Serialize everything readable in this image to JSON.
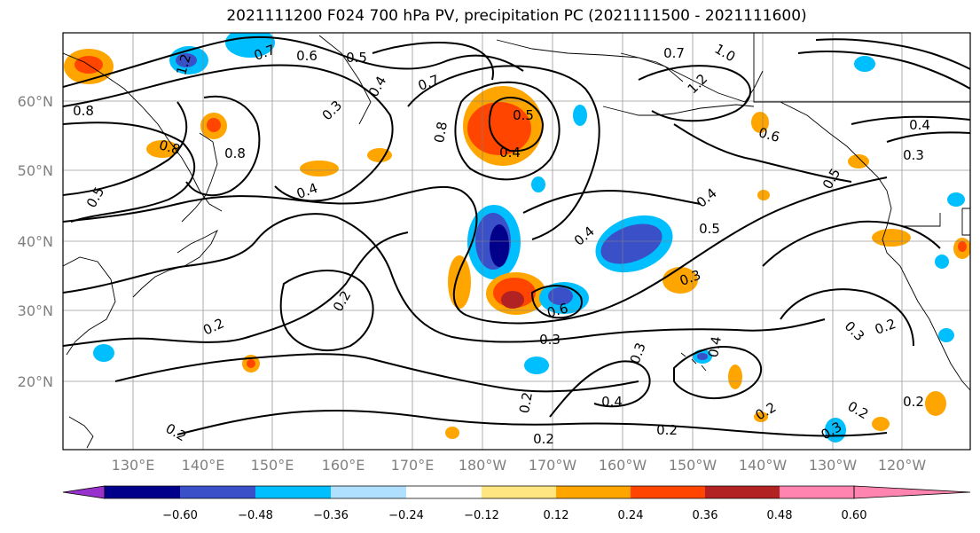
{
  "title": "2021111200 F024 700 hPa PV, precipitation PC (2021111500 - 2021111600)",
  "lat_labels": [
    "60°N",
    "50°N",
    "40°N",
    "30°N",
    "20°N"
  ],
  "lon_labels": [
    "130°E",
    "140°E",
    "150°E",
    "160°E",
    "170°E",
    "180°W",
    "170°W",
    "160°W",
    "150°W",
    "140°W",
    "130°W",
    "120°W"
  ],
  "contour_labels": [
    "1.2",
    "0.7",
    "0.6",
    "0.5",
    "0.7",
    "0.7",
    "1.0",
    "0.8",
    "0.8",
    "0.3",
    "0.4",
    "0.5",
    "0.4",
    "0.8",
    "0.6",
    "0.4",
    "0.8",
    "0.3",
    "0.4",
    "0.5",
    "0.4",
    "0.4",
    "0.5",
    "0.5",
    "0.3",
    "0.6",
    "0.2",
    "0.2",
    "0.3",
    "0.3",
    "0.4",
    "0.2",
    "0.2",
    "0.4",
    "0.2",
    "0.2",
    "0.3",
    "0.2",
    "0.2",
    "0.2",
    "0.3",
    "0.2",
    "1.2"
  ],
  "colorbar": {
    "tick_labels": [
      "−0.60",
      "−0.48",
      "−0.36",
      "−0.24",
      "−0.12",
      "0.12",
      "0.24",
      "0.36",
      "0.48",
      "0.60"
    ],
    "colors": [
      "#9932cc",
      "#00008b",
      "#3a50c8",
      "#00bfff",
      "#b0e0ff",
      "#ffffff",
      "#ffe680",
      "#ffa500",
      "#ff4500",
      "#b22222",
      "#ff85b0"
    ]
  },
  "shading_colors": {
    "dark_blue": "#00008b",
    "medium_blue": "#3a50c8",
    "light_blue": "#00bfff",
    "orange": "#ffa500",
    "red_orange": "#ff4500",
    "dark_red": "#b22222",
    "yellow": "#ffe680"
  }
}
